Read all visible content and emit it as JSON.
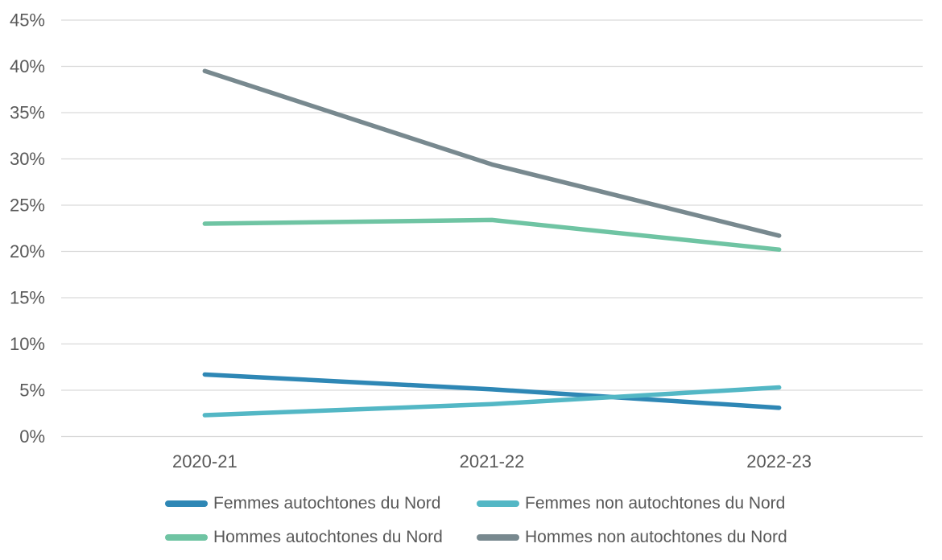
{
  "chart_data": {
    "type": "line",
    "title": "",
    "xlabel": "",
    "ylabel": "",
    "categories": [
      "2020-21",
      "2021-22",
      "2022-23"
    ],
    "series": [
      {
        "name": "Femmes autochtones du Nord",
        "color": "#2E87B5",
        "values": [
          6.7,
          5.1,
          3.1
        ]
      },
      {
        "name": "Femmes non autochtones du Nord",
        "color": "#53B7C5",
        "values": [
          2.3,
          3.5,
          5.3
        ]
      },
      {
        "name": "Hommes autochtones du Nord",
        "color": "#6FC4A3",
        "values": [
          23.0,
          23.4,
          20.2
        ]
      },
      {
        "name": "Hommes non autochtones du Nord",
        "color": "#78898F",
        "values": [
          39.5,
          29.4,
          21.7
        ]
      }
    ],
    "ylim": [
      0,
      45
    ],
    "y_tick_step": 5,
    "y_tick_labels": [
      "0%",
      "5%",
      "10%",
      "15%",
      "20%",
      "25%",
      "30%",
      "35%",
      "40%",
      "45%"
    ],
    "grid": "horizontal",
    "legend_position": "bottom-two-columns",
    "colors": {
      "axis_text": "#595959",
      "gridline": "#D9D9D9",
      "background": "#FFFFFF"
    }
  }
}
